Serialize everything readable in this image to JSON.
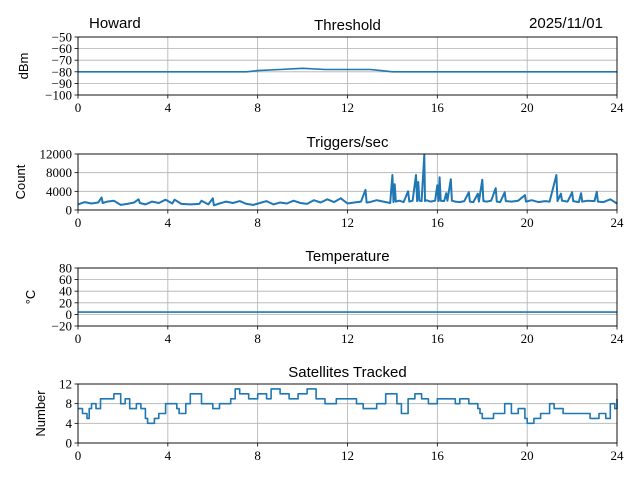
{
  "header": {
    "station": "Howard",
    "date": "2025/11/01"
  },
  "colors": {
    "line": "#1f77b4",
    "grid": "#b0b0b0"
  },
  "chart_data": [
    {
      "type": "line",
      "title": "Threshold",
      "ylabel": "dBm",
      "xlim": [
        0,
        24
      ],
      "ylim": [
        -100,
        -50
      ],
      "xticks": [
        0,
        4,
        8,
        12,
        16,
        20,
        24
      ],
      "yticks": [
        -50,
        -60,
        -70,
        -80,
        -90,
        -100
      ],
      "ytick_labels": [
        "−50",
        "−60",
        "−70",
        "−80",
        "−90",
        "−100"
      ],
      "grid": true,
      "step": false,
      "x": [
        0,
        2,
        4,
        6,
        7.5,
        8,
        9,
        10,
        11,
        12,
        13,
        13.5,
        14,
        16,
        18,
        20,
        22,
        24
      ],
      "y": [
        -80,
        -80,
        -80,
        -80,
        -80,
        -79,
        -78,
        -77,
        -78,
        -78,
        -78,
        -79,
        -80,
        -80,
        -80,
        -80,
        -80,
        -80
      ]
    },
    {
      "type": "line",
      "title": "Triggers/sec",
      "ylabel": "Count",
      "xlim": [
        0,
        24
      ],
      "ylim": [
        0,
        12000
      ],
      "xticks": [
        0,
        4,
        8,
        12,
        16,
        20,
        24
      ],
      "yticks": [
        0,
        4000,
        8000,
        12000
      ],
      "ytick_labels": [
        "0",
        "4000",
        "8000",
        "12000"
      ],
      "grid": true,
      "step": false,
      "x": [
        0,
        0.3,
        0.6,
        0.9,
        1.05,
        1.1,
        1.3,
        1.6,
        1.9,
        2.2,
        2.5,
        2.7,
        2.75,
        3.0,
        3.3,
        3.6,
        3.9,
        4.2,
        4.3,
        4.6,
        5.0,
        5.4,
        5.5,
        5.8,
        6.0,
        6.05,
        6.3,
        6.6,
        6.9,
        7.2,
        7.5,
        7.8,
        8.1,
        8.4,
        8.7,
        9.0,
        9.3,
        9.6,
        9.9,
        10.2,
        10.5,
        10.8,
        11.1,
        11.4,
        11.7,
        12.0,
        12.3,
        12.6,
        12.8,
        12.85,
        13.0,
        13.3,
        13.6,
        13.9,
        14.0,
        14.05,
        14.1,
        14.15,
        14.3,
        14.5,
        14.7,
        14.75,
        14.9,
        15.05,
        15.1,
        15.15,
        15.2,
        15.3,
        15.42,
        15.45,
        15.5,
        15.7,
        15.9,
        16.0,
        16.05,
        16.1,
        16.15,
        16.3,
        16.4,
        16.45,
        16.6,
        16.65,
        16.8,
        17.0,
        17.2,
        17.4,
        17.45,
        17.6,
        17.8,
        17.85,
        18.0,
        18.05,
        18.2,
        18.4,
        18.6,
        18.65,
        18.8,
        19.0,
        19.05,
        19.3,
        19.6,
        19.9,
        19.95,
        20.2,
        20.5,
        20.8,
        21.0,
        21.3,
        21.35,
        21.5,
        21.55,
        21.8,
        22.0,
        22.05,
        22.3,
        22.4,
        22.45,
        22.7,
        23.0,
        23.1,
        23.15,
        23.4,
        23.7,
        24
      ],
      "y": [
        1200,
        1700,
        1400,
        1600,
        2700,
        1500,
        1800,
        2000,
        1100,
        1300,
        1600,
        2300,
        1500,
        1200,
        1800,
        1500,
        2200,
        1400,
        2200,
        1300,
        1200,
        1300,
        2000,
        1200,
        2500,
        1000,
        1400,
        1800,
        1500,
        1900,
        1300,
        1100,
        1500,
        1900,
        1200,
        1600,
        1400,
        2000,
        1500,
        1300,
        2100,
        1600,
        2300,
        1700,
        2500,
        1400,
        1600,
        1800,
        4300,
        1600,
        1700,
        2100,
        1800,
        1500,
        7500,
        1700,
        5500,
        1800,
        2000,
        1700,
        4000,
        1800,
        2000,
        7500,
        1900,
        6000,
        2000,
        1900,
        11800,
        1900,
        2100,
        1800,
        2000,
        5300,
        1900,
        7000,
        2000,
        1900,
        3600,
        2000,
        6600,
        2000,
        1800,
        1700,
        1900,
        3800,
        1800,
        1700,
        3500,
        1800,
        6500,
        1900,
        1800,
        2000,
        4700,
        1800,
        1700,
        3800,
        1900,
        1800,
        2000,
        3200,
        1800,
        2100,
        1700,
        1900,
        1800,
        7500,
        1900,
        3500,
        2000,
        1800,
        3800,
        1900,
        1700,
        3600,
        1800,
        2000,
        1900,
        3900,
        1800,
        1700,
        2300,
        1400
      ]
    },
    {
      "type": "line",
      "title": "Temperature",
      "ylabel": "°C",
      "xlim": [
        0,
        24
      ],
      "ylim": [
        -20,
        80
      ],
      "xticks": [
        0,
        4,
        8,
        12,
        16,
        20,
        24
      ],
      "yticks": [
        -20,
        0,
        20,
        40,
        60,
        80
      ],
      "ytick_labels": [
        "−20",
        "0",
        "20",
        "40",
        "60",
        "80"
      ],
      "grid": true,
      "step": false,
      "x": [
        0,
        24
      ],
      "y": [
        4,
        4
      ]
    },
    {
      "type": "line",
      "title": "Satellites Tracked",
      "ylabel": "Number",
      "xlim": [
        0,
        24
      ],
      "ylim": [
        0,
        12
      ],
      "xticks": [
        0,
        4,
        8,
        12,
        16,
        20,
        24
      ],
      "yticks": [
        0,
        4,
        8,
        12
      ],
      "ytick_labels": [
        "0",
        "4",
        "8",
        "12"
      ],
      "grid": true,
      "step": true,
      "x": [
        0,
        0.2,
        0.4,
        0.5,
        0.6,
        0.8,
        1.0,
        1.6,
        1.9,
        2.1,
        2.3,
        2.6,
        2.8,
        3.0,
        3.1,
        3.4,
        3.6,
        3.9,
        4.4,
        4.5,
        4.8,
        5.0,
        5.5,
        6.0,
        6.3,
        6.8,
        7.0,
        7.2,
        7.6,
        8.0,
        8.4,
        8.6,
        9.0,
        9.4,
        9.8,
        10.2,
        10.6,
        11.0,
        11.5,
        12.0,
        12.4,
        12.7,
        13.3,
        13.7,
        14.2,
        14.4,
        14.7,
        15.0,
        15.3,
        15.6,
        16.0,
        16.6,
        16.8,
        17.0,
        17.4,
        17.8,
        17.9,
        18.0,
        18.5,
        19.0,
        19.3,
        19.6,
        19.9,
        20.0,
        20.3,
        20.6,
        21.0,
        21.2,
        21.6,
        22.5,
        22.8,
        23.2,
        23.5,
        23.7,
        23.9,
        24
      ],
      "y": [
        7,
        6,
        5,
        7,
        8,
        7,
        9,
        10,
        8,
        9,
        7,
        8,
        7,
        5,
        4,
        5,
        6,
        8,
        7,
        6,
        8,
        10,
        8,
        7,
        8,
        9,
        11,
        10,
        9,
        10,
        9,
        11,
        10,
        9,
        10,
        11,
        9,
        8,
        9,
        9,
        8,
        7,
        8,
        10,
        8,
        6,
        9,
        10,
        9,
        8,
        9,
        9,
        8,
        9,
        8,
        7,
        6,
        5,
        6,
        8,
        6,
        7,
        5,
        4,
        5,
        6,
        8,
        7,
        6,
        6,
        5,
        6,
        5,
        8,
        7,
        9
      ]
    }
  ]
}
